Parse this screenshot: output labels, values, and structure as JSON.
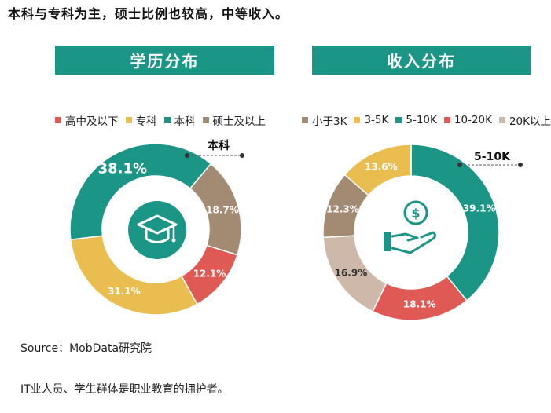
{
  "headline": "本科与专科为主，硕士比例也较高，中等收入。",
  "source": "Source：MobData研究院",
  "footer": "IT业人员、学生群体是职业教育的拥护者。",
  "colors": {
    "teal": "#1b9686",
    "yellow": "#e9bd50",
    "red": "#df5a54",
    "brown": "#a38a73",
    "beige": "#cdb8a9"
  },
  "icons": {
    "left_center": "graduation-cap-icon",
    "right_center": "money-hand-icon"
  },
  "chart_data": [
    {
      "type": "pie",
      "style": "donut",
      "title": "学历分布",
      "legend_position": "top",
      "categories": [
        "高中及以下",
        "专科",
        "本科",
        "硕士及以上"
      ],
      "values": [
        12.1,
        31.1,
        38.1,
        18.7
      ],
      "value_labels": [
        "12.1%",
        "31.1%",
        "38.1%",
        "18.7%"
      ],
      "colors": [
        "#df5a54",
        "#e9bd50",
        "#1b9686",
        "#a38a73"
      ],
      "callout": "本科"
    },
    {
      "type": "pie",
      "style": "donut",
      "title": "收入分布",
      "legend_position": "top",
      "categories": [
        "小于3K",
        "3-5K",
        "5-10K",
        "10-20K",
        "20K以上"
      ],
      "values": [
        12.3,
        13.6,
        39.1,
        18.1,
        16.9
      ],
      "value_labels": [
        "12.3%",
        "13.6%",
        "39.1%",
        "18.1%",
        "16.9%"
      ],
      "colors": [
        "#a38a73",
        "#e9bd50",
        "#1b9686",
        "#df5a54",
        "#cdb8a9"
      ],
      "callout": "5-10K"
    }
  ]
}
